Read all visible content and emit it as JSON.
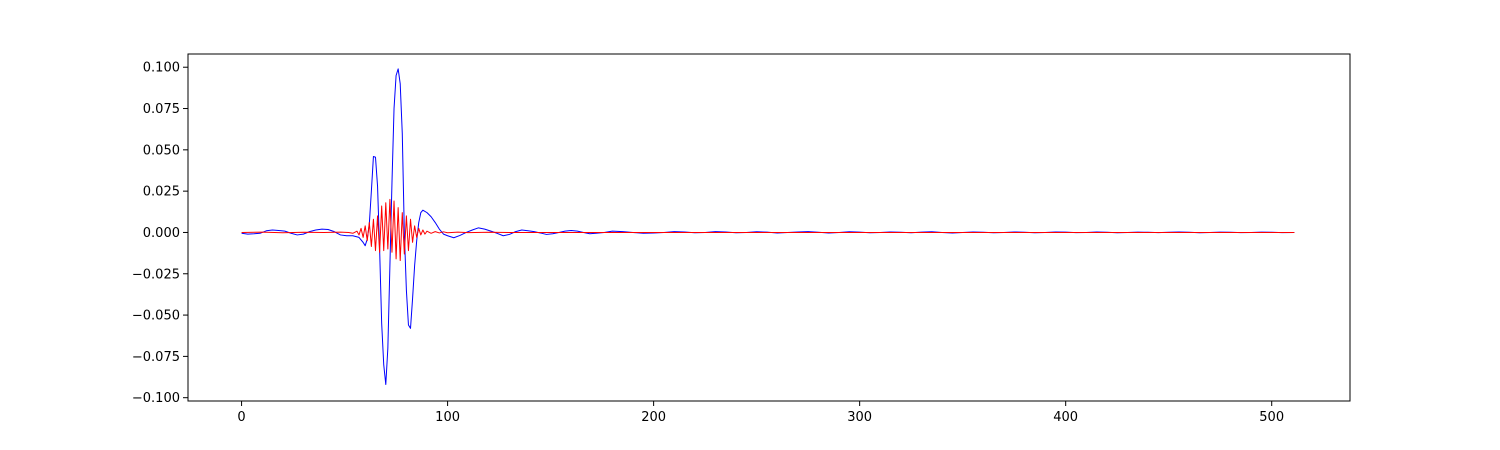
{
  "chart_data": {
    "type": "line",
    "title": "",
    "xlabel": "",
    "ylabel": "",
    "xlim": [
      -26,
      538
    ],
    "ylim": [
      -0.102,
      0.108
    ],
    "grid": false,
    "x_ticks": [
      0,
      100,
      200,
      300,
      400,
      500
    ],
    "y_ticks": [
      -0.1,
      -0.075,
      -0.05,
      -0.025,
      0.0,
      0.025,
      0.05,
      0.075,
      0.1
    ],
    "x_tick_labels": [
      "0",
      "100",
      "200",
      "300",
      "400",
      "500"
    ],
    "y_tick_labels": [
      "−0.100",
      "−0.075",
      "−0.050",
      "−0.025",
      "0.000",
      "0.025",
      "0.050",
      "0.075",
      "0.100"
    ],
    "series": [
      {
        "color": "#0000ff",
        "points": [
          [
            0,
            -0.0005
          ],
          [
            3,
            -0.001
          ],
          [
            6,
            -0.0008
          ],
          [
            9,
            -0.0005
          ],
          [
            12,
            0.001
          ],
          [
            15,
            0.0015
          ],
          [
            18,
            0.0012
          ],
          [
            21,
            0.0008
          ],
          [
            24,
            -0.0005
          ],
          [
            27,
            -0.0015
          ],
          [
            30,
            -0.001
          ],
          [
            33,
            0.0005
          ],
          [
            36,
            0.0015
          ],
          [
            39,
            0.002
          ],
          [
            42,
            0.0018
          ],
          [
            45,
            0.0005
          ],
          [
            48,
            -0.0015
          ],
          [
            51,
            -0.002
          ],
          [
            54,
            -0.002
          ],
          [
            57,
            -0.003
          ],
          [
            59,
            -0.006
          ],
          [
            60,
            -0.008
          ],
          [
            61,
            -0.004
          ],
          [
            62,
            0.005
          ],
          [
            63,
            0.025
          ],
          [
            64,
            0.046
          ],
          [
            65,
            0.0455
          ],
          [
            66,
            0.028
          ],
          [
            67,
            -0.01
          ],
          [
            68,
            -0.055
          ],
          [
            69,
            -0.08
          ],
          [
            70,
            -0.092
          ],
          [
            71,
            -0.07
          ],
          [
            72,
            -0.02
          ],
          [
            73,
            0.03
          ],
          [
            74,
            0.075
          ],
          [
            75,
            0.095
          ],
          [
            76,
            0.099
          ],
          [
            77,
            0.09
          ],
          [
            78,
            0.06
          ],
          [
            79,
            0.0
          ],
          [
            80,
            -0.035
          ],
          [
            81,
            -0.056
          ],
          [
            82,
            -0.058
          ],
          [
            83,
            -0.04
          ],
          [
            84,
            -0.02
          ],
          [
            85,
            -0.005
          ],
          [
            86,
            0.006
          ],
          [
            87,
            0.012
          ],
          [
            88,
            0.0135
          ],
          [
            90,
            0.012
          ],
          [
            92,
            0.0095
          ],
          [
            94,
            0.006
          ],
          [
            96,
            0.002
          ],
          [
            98,
            -0.001
          ],
          [
            100,
            -0.002
          ],
          [
            103,
            -0.0032
          ],
          [
            106,
            -0.0018
          ],
          [
            109,
            0.0
          ],
          [
            112,
            0.0015
          ],
          [
            115,
            0.0028
          ],
          [
            118,
            0.002
          ],
          [
            121,
            0.0008
          ],
          [
            124,
            -0.0005
          ],
          [
            127,
            -0.002
          ],
          [
            130,
            -0.0012
          ],
          [
            133,
            0.0005
          ],
          [
            136,
            0.0015
          ],
          [
            139,
            0.001
          ],
          [
            142,
            0.0005
          ],
          [
            145,
            -0.0003
          ],
          [
            148,
            -0.0012
          ],
          [
            151,
            -0.0008
          ],
          [
            154,
            0.0
          ],
          [
            157,
            0.0008
          ],
          [
            160,
            0.0012
          ],
          [
            163,
            0.0008
          ],
          [
            166,
            0.0
          ],
          [
            169,
            -0.0008
          ],
          [
            172,
            -0.0005
          ],
          [
            176,
            0.0
          ],
          [
            180,
            0.0008
          ],
          [
            185,
            0.0005
          ],
          [
            190,
            0.0
          ],
          [
            195,
            -0.0005
          ],
          [
            200,
            -0.0003
          ],
          [
            205,
            0.0
          ],
          [
            210,
            0.0005
          ],
          [
            215,
            0.0003
          ],
          [
            220,
            -0.0002
          ],
          [
            225,
            0.0
          ],
          [
            230,
            0.0005
          ],
          [
            235,
            0.0003
          ],
          [
            240,
            -0.0002
          ],
          [
            245,
            0.0
          ],
          [
            250,
            0.0004
          ],
          [
            255,
            0.0002
          ],
          [
            260,
            -0.0003
          ],
          [
            265,
            0.0
          ],
          [
            270,
            0.0003
          ],
          [
            275,
            0.0005
          ],
          [
            280,
            0.0001
          ],
          [
            285,
            -0.0003
          ],
          [
            290,
            0.0
          ],
          [
            295,
            0.0004
          ],
          [
            300,
            0.0002
          ],
          [
            305,
            -0.0002
          ],
          [
            310,
            0.0
          ],
          [
            315,
            0.0003
          ],
          [
            320,
            0.0001
          ],
          [
            325,
            -0.0002
          ],
          [
            330,
            0.0002
          ],
          [
            335,
            0.0004
          ],
          [
            340,
            0.0
          ],
          [
            345,
            -0.0003
          ],
          [
            350,
            0.0
          ],
          [
            355,
            0.0003
          ],
          [
            360,
            0.0001
          ],
          [
            365,
            -0.0002
          ],
          [
            370,
            0.0
          ],
          [
            375,
            0.0003
          ],
          [
            380,
            0.0001
          ],
          [
            385,
            -0.0002
          ],
          [
            390,
            0.0
          ],
          [
            395,
            0.0003
          ],
          [
            400,
            0.0002
          ],
          [
            405,
            -0.0001
          ],
          [
            410,
            0.0
          ],
          [
            415,
            0.0003
          ],
          [
            420,
            0.0001
          ],
          [
            425,
            -0.0002
          ],
          [
            430,
            0.0
          ],
          [
            435,
            0.0002
          ],
          [
            440,
            0.0001
          ],
          [
            445,
            -0.0001
          ],
          [
            450,
            0.0001
          ],
          [
            455,
            0.0003
          ],
          [
            460,
            0.0001
          ],
          [
            465,
            -0.0002
          ],
          [
            470,
            0.0
          ],
          [
            475,
            0.0002
          ],
          [
            480,
            0.0001
          ],
          [
            485,
            -0.0001
          ],
          [
            490,
            0.0
          ],
          [
            495,
            0.0002
          ],
          [
            500,
            0.0001
          ],
          [
            505,
            -0.0001
          ],
          [
            511,
            0.0
          ]
        ]
      },
      {
        "color": "#ff0000",
        "points": [
          [
            0,
            0.0
          ],
          [
            10,
            0.0002
          ],
          [
            20,
            -0.0002
          ],
          [
            30,
            0.0001
          ],
          [
            40,
            0.0
          ],
          [
            48,
            0.0002
          ],
          [
            52,
            0.0
          ],
          [
            54,
            -0.0005
          ],
          [
            56,
            0.0008
          ],
          [
            57,
            -0.0015
          ],
          [
            58,
            0.0025
          ],
          [
            59,
            -0.003
          ],
          [
            60,
            0.004
          ],
          [
            61,
            -0.005
          ],
          [
            62,
            0.006
          ],
          [
            63,
            -0.0085
          ],
          [
            64,
            0.008
          ],
          [
            65,
            -0.011
          ],
          [
            66,
            0.01
          ],
          [
            67,
            -0.012
          ],
          [
            68,
            0.016
          ],
          [
            69,
            -0.011
          ],
          [
            70,
            0.018
          ],
          [
            71,
            -0.01
          ],
          [
            72,
            0.02
          ],
          [
            73,
            -0.012
          ],
          [
            74,
            0.019
          ],
          [
            75,
            -0.016
          ],
          [
            76,
            0.015
          ],
          [
            77,
            -0.017
          ],
          [
            78,
            0.012
          ],
          [
            79,
            -0.013
          ],
          [
            80,
            0.01
          ],
          [
            81,
            -0.011
          ],
          [
            82,
            0.008
          ],
          [
            83,
            -0.006
          ],
          [
            84,
            0.004
          ],
          [
            85,
            -0.003
          ],
          [
            86,
            0.0025
          ],
          [
            87,
            -0.0015
          ],
          [
            88,
            0.0015
          ],
          [
            89,
            -0.001
          ],
          [
            90,
            0.0008
          ],
          [
            92,
            -0.0005
          ],
          [
            94,
            0.0005
          ],
          [
            96,
            -0.0003
          ],
          [
            98,
            0.0004
          ],
          [
            100,
            -0.0002
          ],
          [
            105,
            0.0002
          ],
          [
            110,
            -0.0001
          ],
          [
            120,
            0.0001
          ],
          [
            130,
            0.0
          ],
          [
            150,
            0.0
          ],
          [
            200,
            0.0
          ],
          [
            300,
            0.0
          ],
          [
            400,
            0.0
          ],
          [
            511,
            0.0
          ]
        ]
      }
    ]
  }
}
